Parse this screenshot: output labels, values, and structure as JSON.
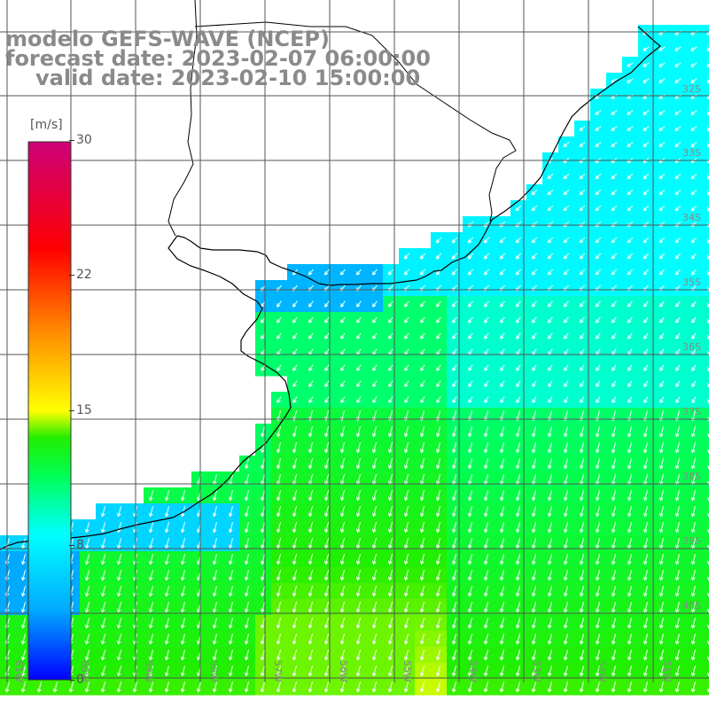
{
  "title": {
    "line1": "modelo GEFS-WAVE (NCEP)",
    "line2": "forecast date: 2023-02-07 06:00:00",
    "line3": "valid date: 2023-02-10 15:00:00"
  },
  "colorbar": {
    "unit": "[m/s]",
    "ticks": [
      {
        "label": "30",
        "value": 30
      },
      {
        "label": "22",
        "value": 22
      },
      {
        "label": "15",
        "value": 15
      },
      {
        "label": "8",
        "value": 8
      },
      {
        "label": "0",
        "value": 0
      }
    ],
    "min": 0,
    "max": 30,
    "colors": [
      "#0000ff",
      "#00aaff",
      "#00ffff",
      "#00ff55",
      "#22ee00",
      "#ffff00",
      "#ff8800",
      "#ff0000",
      "#cc0077"
    ]
  },
  "grid": {
    "lon_labels": [
      "61W",
      "60W",
      "59W",
      "58W",
      "57W",
      "56W",
      "55W",
      "54W",
      "53W",
      "52W",
      "51W"
    ],
    "lat_labels": [
      "32S",
      "33S",
      "34S",
      "35S",
      "36S",
      "37S",
      "38S",
      "39S",
      "40S"
    ]
  },
  "colors": {
    "land": "#ffffff",
    "coast": "#000000",
    "grid": "#555555",
    "arrow": "#ffffff",
    "label": "#8a8a8a"
  }
}
